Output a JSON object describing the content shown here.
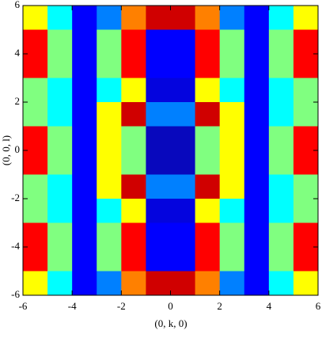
{
  "chart_data": {
    "type": "heatmap",
    "xlabel": "(0, k, 0)",
    "ylabel": "(0, 0, l)",
    "x": [
      -5.5,
      -4.5,
      -3.5,
      -2.5,
      -1.5,
      -0.5,
      0.5,
      1.5,
      2.5,
      3.5,
      4.5,
      5.5
    ],
    "y": [
      5.5,
      4.5,
      3.5,
      2.5,
      1.5,
      0.5,
      -0.5,
      -1.5,
      -2.5,
      -3.5,
      -4.5,
      -5.5
    ],
    "values": [
      [
        0.6,
        0.4,
        0.2,
        0.3,
        0.7,
        0.9,
        0.9,
        0.7,
        0.3,
        0.2,
        0.4,
        0.6
      ],
      [
        0.8,
        0.5,
        0.2,
        0.5,
        0.8,
        0.2,
        0.2,
        0.8,
        0.5,
        0.2,
        0.5,
        0.8
      ],
      [
        0.8,
        0.5,
        0.2,
        0.5,
        0.8,
        0.2,
        0.2,
        0.8,
        0.5,
        0.2,
        0.5,
        0.8
      ],
      [
        0.5,
        0.4,
        0.2,
        0.4,
        0.6,
        0.15,
        0.15,
        0.6,
        0.4,
        0.2,
        0.4,
        0.5
      ],
      [
        0.5,
        0.4,
        0.2,
        0.6,
        0.9,
        0.3,
        0.3,
        0.9,
        0.6,
        0.2,
        0.4,
        0.5
      ],
      [
        0.8,
        0.5,
        0.2,
        0.6,
        0.5,
        0.1,
        0.1,
        0.5,
        0.6,
        0.2,
        0.5,
        0.8
      ],
      [
        0.8,
        0.5,
        0.2,
        0.6,
        0.5,
        0.1,
        0.1,
        0.5,
        0.6,
        0.2,
        0.5,
        0.8
      ],
      [
        0.5,
        0.4,
        0.2,
        0.6,
        0.9,
        0.3,
        0.3,
        0.9,
        0.6,
        0.2,
        0.4,
        0.5
      ],
      [
        0.5,
        0.4,
        0.2,
        0.4,
        0.6,
        0.15,
        0.15,
        0.6,
        0.4,
        0.2,
        0.4,
        0.5
      ],
      [
        0.8,
        0.5,
        0.2,
        0.5,
        0.8,
        0.2,
        0.2,
        0.8,
        0.5,
        0.2,
        0.5,
        0.8
      ],
      [
        0.8,
        0.5,
        0.2,
        0.5,
        0.8,
        0.2,
        0.2,
        0.8,
        0.5,
        0.2,
        0.5,
        0.8
      ],
      [
        0.6,
        0.4,
        0.2,
        0.3,
        0.7,
        0.9,
        0.9,
        0.7,
        0.3,
        0.2,
        0.4,
        0.6
      ]
    ],
    "zlim": [
      0,
      1
    ],
    "colormap": [
      "#10107a",
      "#0000ff",
      "#00ffff",
      "#ffff00",
      "#ff0000",
      "#a00000"
    ],
    "xlim": [
      -6,
      6
    ],
    "ylim": [
      -6,
      6
    ],
    "xticks": [
      -6,
      -4,
      -2,
      0,
      2,
      4,
      6
    ],
    "yticks": [
      -6,
      -4,
      -2,
      0,
      2,
      4,
      6
    ]
  }
}
